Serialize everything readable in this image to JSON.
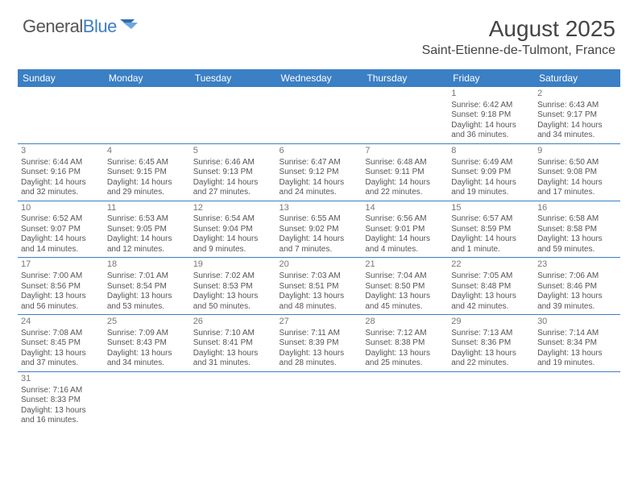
{
  "logo": {
    "text1": "General",
    "text2": "Blue"
  },
  "title": "August 2025",
  "location": "Saint-Etienne-de-Tulmont, France",
  "colors": {
    "header_bg": "#3b7fc4",
    "header_text": "#ffffff",
    "border": "#3b7fc4",
    "body_text": "#555555",
    "daynum": "#777777"
  },
  "weekdays": [
    "Sunday",
    "Monday",
    "Tuesday",
    "Wednesday",
    "Thursday",
    "Friday",
    "Saturday"
  ],
  "weeks": [
    [
      null,
      null,
      null,
      null,
      null,
      {
        "n": "1",
        "sunrise": "6:42 AM",
        "sunset": "9:18 PM",
        "dayh": "14",
        "daym": "36"
      },
      {
        "n": "2",
        "sunrise": "6:43 AM",
        "sunset": "9:17 PM",
        "dayh": "14",
        "daym": "34"
      }
    ],
    [
      {
        "n": "3",
        "sunrise": "6:44 AM",
        "sunset": "9:16 PM",
        "dayh": "14",
        "daym": "32"
      },
      {
        "n": "4",
        "sunrise": "6:45 AM",
        "sunset": "9:15 PM",
        "dayh": "14",
        "daym": "29"
      },
      {
        "n": "5",
        "sunrise": "6:46 AM",
        "sunset": "9:13 PM",
        "dayh": "14",
        "daym": "27"
      },
      {
        "n": "6",
        "sunrise": "6:47 AM",
        "sunset": "9:12 PM",
        "dayh": "14",
        "daym": "24"
      },
      {
        "n": "7",
        "sunrise": "6:48 AM",
        "sunset": "9:11 PM",
        "dayh": "14",
        "daym": "22"
      },
      {
        "n": "8",
        "sunrise": "6:49 AM",
        "sunset": "9:09 PM",
        "dayh": "14",
        "daym": "19"
      },
      {
        "n": "9",
        "sunrise": "6:50 AM",
        "sunset": "9:08 PM",
        "dayh": "14",
        "daym": "17"
      }
    ],
    [
      {
        "n": "10",
        "sunrise": "6:52 AM",
        "sunset": "9:07 PM",
        "dayh": "14",
        "daym": "14"
      },
      {
        "n": "11",
        "sunrise": "6:53 AM",
        "sunset": "9:05 PM",
        "dayh": "14",
        "daym": "12"
      },
      {
        "n": "12",
        "sunrise": "6:54 AM",
        "sunset": "9:04 PM",
        "dayh": "14",
        "daym": "9"
      },
      {
        "n": "13",
        "sunrise": "6:55 AM",
        "sunset": "9:02 PM",
        "dayh": "14",
        "daym": "7"
      },
      {
        "n": "14",
        "sunrise": "6:56 AM",
        "sunset": "9:01 PM",
        "dayh": "14",
        "daym": "4"
      },
      {
        "n": "15",
        "sunrise": "6:57 AM",
        "sunset": "8:59 PM",
        "dayh": "14",
        "daym": "1"
      },
      {
        "n": "16",
        "sunrise": "6:58 AM",
        "sunset": "8:58 PM",
        "dayh": "13",
        "daym": "59"
      }
    ],
    [
      {
        "n": "17",
        "sunrise": "7:00 AM",
        "sunset": "8:56 PM",
        "dayh": "13",
        "daym": "56"
      },
      {
        "n": "18",
        "sunrise": "7:01 AM",
        "sunset": "8:54 PM",
        "dayh": "13",
        "daym": "53"
      },
      {
        "n": "19",
        "sunrise": "7:02 AM",
        "sunset": "8:53 PM",
        "dayh": "13",
        "daym": "50"
      },
      {
        "n": "20",
        "sunrise": "7:03 AM",
        "sunset": "8:51 PM",
        "dayh": "13",
        "daym": "48"
      },
      {
        "n": "21",
        "sunrise": "7:04 AM",
        "sunset": "8:50 PM",
        "dayh": "13",
        "daym": "45"
      },
      {
        "n": "22",
        "sunrise": "7:05 AM",
        "sunset": "8:48 PM",
        "dayh": "13",
        "daym": "42"
      },
      {
        "n": "23",
        "sunrise": "7:06 AM",
        "sunset": "8:46 PM",
        "dayh": "13",
        "daym": "39"
      }
    ],
    [
      {
        "n": "24",
        "sunrise": "7:08 AM",
        "sunset": "8:45 PM",
        "dayh": "13",
        "daym": "37"
      },
      {
        "n": "25",
        "sunrise": "7:09 AM",
        "sunset": "8:43 PM",
        "dayh": "13",
        "daym": "34"
      },
      {
        "n": "26",
        "sunrise": "7:10 AM",
        "sunset": "8:41 PM",
        "dayh": "13",
        "daym": "31"
      },
      {
        "n": "27",
        "sunrise": "7:11 AM",
        "sunset": "8:39 PM",
        "dayh": "13",
        "daym": "28"
      },
      {
        "n": "28",
        "sunrise": "7:12 AM",
        "sunset": "8:38 PM",
        "dayh": "13",
        "daym": "25"
      },
      {
        "n": "29",
        "sunrise": "7:13 AM",
        "sunset": "8:36 PM",
        "dayh": "13",
        "daym": "22"
      },
      {
        "n": "30",
        "sunrise": "7:14 AM",
        "sunset": "8:34 PM",
        "dayh": "13",
        "daym": "19"
      }
    ],
    [
      {
        "n": "31",
        "sunrise": "7:16 AM",
        "sunset": "8:33 PM",
        "dayh": "13",
        "daym": "16"
      },
      null,
      null,
      null,
      null,
      null,
      null
    ]
  ]
}
